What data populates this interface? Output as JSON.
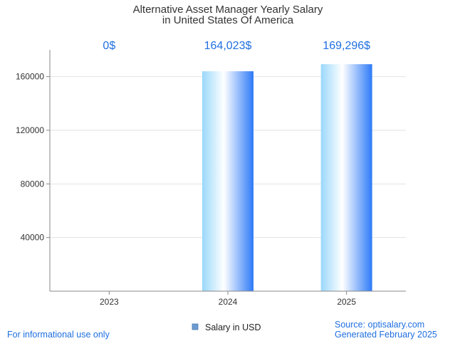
{
  "chart_data": {
    "type": "bar",
    "title": [
      "Alternative Asset Manager Yearly Salary",
      "in United States Of America"
    ],
    "categories": [
      "2023",
      "2024",
      "2025"
    ],
    "series": [
      {
        "name": "Salary in USD",
        "values": [
          0,
          164023,
          169296
        ],
        "data_labels": [
          "0$",
          "164,023$",
          "169,296$"
        ]
      }
    ],
    "yticks": [
      "40000",
      "80000",
      "120000",
      "160000"
    ],
    "ylim": [
      0,
      180000
    ],
    "grid": true,
    "legend_position": "bottom-center"
  },
  "footer": {
    "left": "For informational use only",
    "source": "Source: optisalary.com",
    "generated": "Generated February 2025"
  },
  "colors": {
    "bar_edge_light": "#9ad8fb",
    "bar_center": "#ffffff",
    "bar_edge_dark": "#2d7af7",
    "legend_swatch": "#6b9bd1",
    "data_label": "#1f6fe0",
    "footer_text": "#1f6fe0",
    "gridline": "#e2e2e2",
    "axis": "#888888"
  }
}
